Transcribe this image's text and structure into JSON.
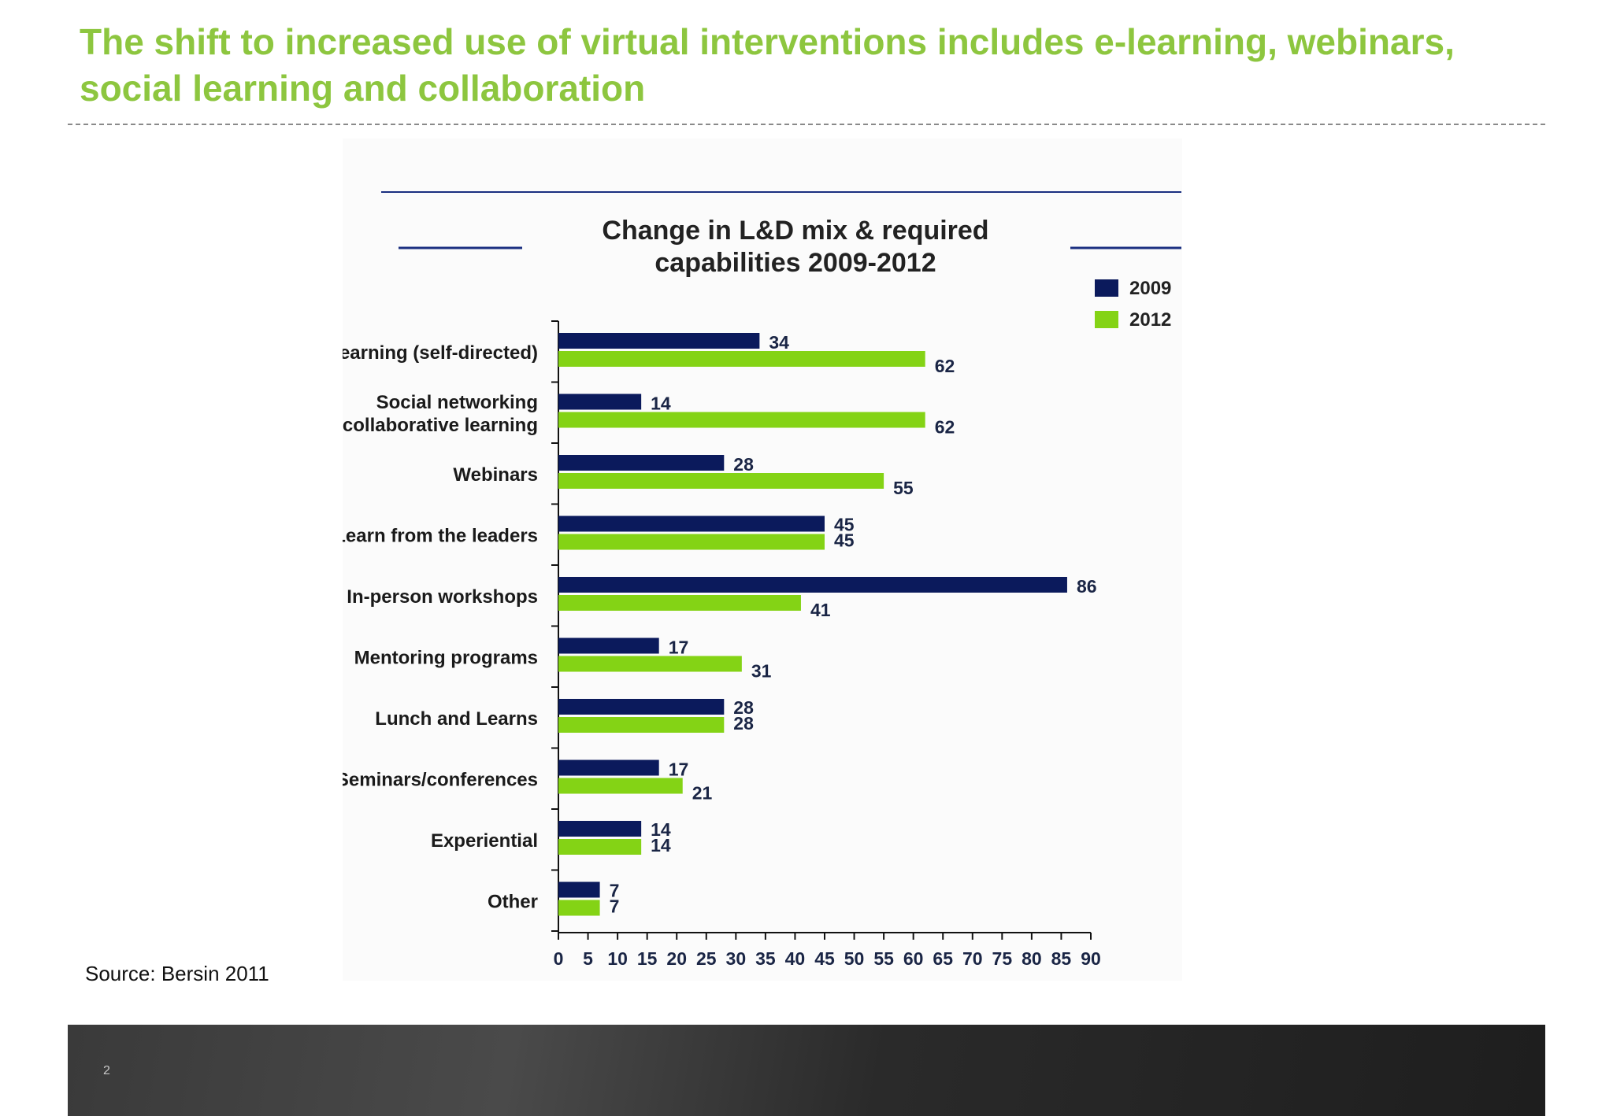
{
  "slide": {
    "title_line1": "The shift to increased use of virtual interventions includes e-learning, webinars,",
    "title_line2": "social learning and collaboration",
    "source": "Source: Bersin 2011",
    "page_number": "2"
  },
  "colors": {
    "title": "#8dc63f",
    "series_2009": "#0b1a5c",
    "series_2012": "#84d315"
  },
  "chart_data": {
    "type": "bar",
    "orientation": "horizontal",
    "title_line1": "Change in L&D mix & required",
    "title_line2": "capabilities 2009-2012",
    "categories": [
      [
        "elearning (self-directed)"
      ],
      [
        "Social networking",
        "/ collaborative learning"
      ],
      [
        "Webinars"
      ],
      [
        "Learn from the leaders"
      ],
      [
        "In-person workshops"
      ],
      [
        "Mentoring programs"
      ],
      [
        "Lunch and Learns"
      ],
      [
        "Seminars/conferences"
      ],
      [
        "Experiential"
      ],
      [
        "Other"
      ]
    ],
    "series": [
      {
        "name": "2009",
        "color": "#0b1a5c",
        "values": [
          34,
          14,
          28,
          45,
          86,
          17,
          28,
          17,
          14,
          7
        ]
      },
      {
        "name": "2012",
        "color": "#84d315",
        "values": [
          62,
          62,
          55,
          45,
          41,
          31,
          28,
          21,
          14,
          7
        ]
      }
    ],
    "xlim": [
      0,
      90
    ],
    "xticks": [
      0,
      5,
      10,
      15,
      20,
      25,
      30,
      35,
      40,
      45,
      50,
      55,
      60,
      65,
      70,
      75,
      80,
      85,
      90
    ],
    "legend_position": "top-right",
    "grid": false
  }
}
